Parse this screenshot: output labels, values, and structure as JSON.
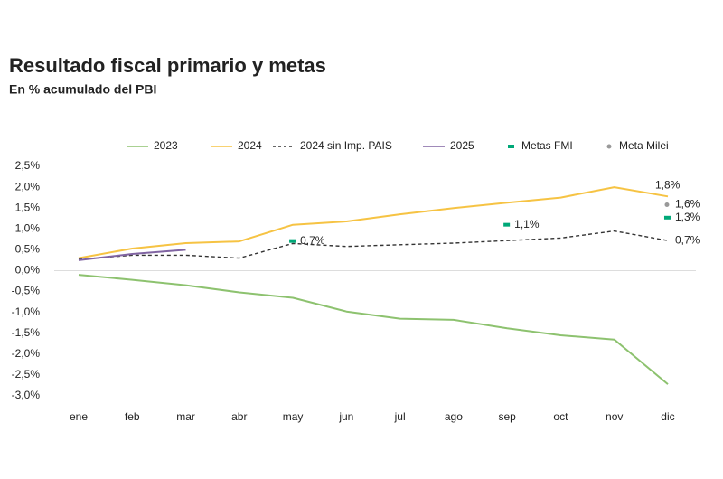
{
  "chart_data": {
    "type": "line",
    "title": "Resultado fiscal primario y metas",
    "subtitle": "En % acumulado del PBI",
    "categories": [
      "ene",
      "feb",
      "mar",
      "abr",
      "may",
      "jun",
      "jul",
      "ago",
      "sep",
      "oct",
      "nov",
      "dic"
    ],
    "ylim": [
      -3,
      2.5
    ],
    "yticks": [
      {
        "value": 2.5,
        "label": "2,5%"
      },
      {
        "value": 2,
        "label": "2,0%"
      },
      {
        "value": 1.5,
        "label": "1,5%"
      },
      {
        "value": 1,
        "label": "1,0%"
      },
      {
        "value": 0.5,
        "label": "0,5%"
      },
      {
        "value": 0,
        "label": "0,0%"
      },
      {
        "value": -0.5,
        "label": "-0,5%"
      },
      {
        "value": -1,
        "label": "-1,0%"
      },
      {
        "value": -1.5,
        "label": "-1,5%"
      },
      {
        "value": -2,
        "label": "-2,0%"
      },
      {
        "value": -2.5,
        "label": "-2,5%"
      },
      {
        "value": -3,
        "label": "-3,0%"
      }
    ],
    "grid": false,
    "legend": "top",
    "series": [
      {
        "name": "2023",
        "color": "#8dc26f",
        "style": "solid",
        "values": [
          -0.1,
          -0.22,
          -0.35,
          -0.52,
          -0.65,
          -0.98,
          -1.15,
          -1.18,
          -1.38,
          -1.55,
          -1.65,
          -2.72
        ]
      },
      {
        "name": "2024",
        "color": "#f6c343",
        "style": "solid",
        "values": [
          0.3,
          0.53,
          0.66,
          0.7,
          1.1,
          1.18,
          1.35,
          1.5,
          1.63,
          1.75,
          2.0,
          1.78
        ],
        "value_labels": [
          null,
          null,
          null,
          null,
          null,
          null,
          null,
          null,
          null,
          null,
          null,
          "1,8%"
        ]
      },
      {
        "name": "2024 sin Imp. PAIS",
        "color": "#333333",
        "style": "dashed",
        "values": [
          0.27,
          0.37,
          0.37,
          0.3,
          0.65,
          0.58,
          0.62,
          0.66,
          0.72,
          0.78,
          0.95,
          0.72
        ],
        "value_labels": [
          null,
          null,
          null,
          null,
          null,
          null,
          null,
          null,
          null,
          null,
          null,
          "0,7%"
        ]
      },
      {
        "name": "2025",
        "color": "#8064a2",
        "style": "solid",
        "values": [
          0.25,
          0.4,
          0.5,
          null,
          null,
          null,
          null,
          null,
          null,
          null,
          null,
          null
        ]
      },
      {
        "name": "Metas FMI",
        "color": "#00a878",
        "style": "dash-marker",
        "values": [
          null,
          null,
          null,
          null,
          0.71,
          null,
          null,
          null,
          1.1,
          null,
          null,
          1.27
        ],
        "value_labels": [
          null,
          null,
          null,
          null,
          "0,7%",
          null,
          null,
          null,
          "1,1%",
          null,
          null,
          "1,3%"
        ]
      },
      {
        "name": "Meta Milei",
        "color": "#999999",
        "style": "dot-marker",
        "values": [
          null,
          null,
          null,
          null,
          null,
          null,
          null,
          null,
          null,
          null,
          null,
          1.58
        ],
        "value_labels": [
          null,
          null,
          null,
          null,
          null,
          null,
          null,
          null,
          null,
          null,
          null,
          "1,6%"
        ]
      }
    ]
  }
}
